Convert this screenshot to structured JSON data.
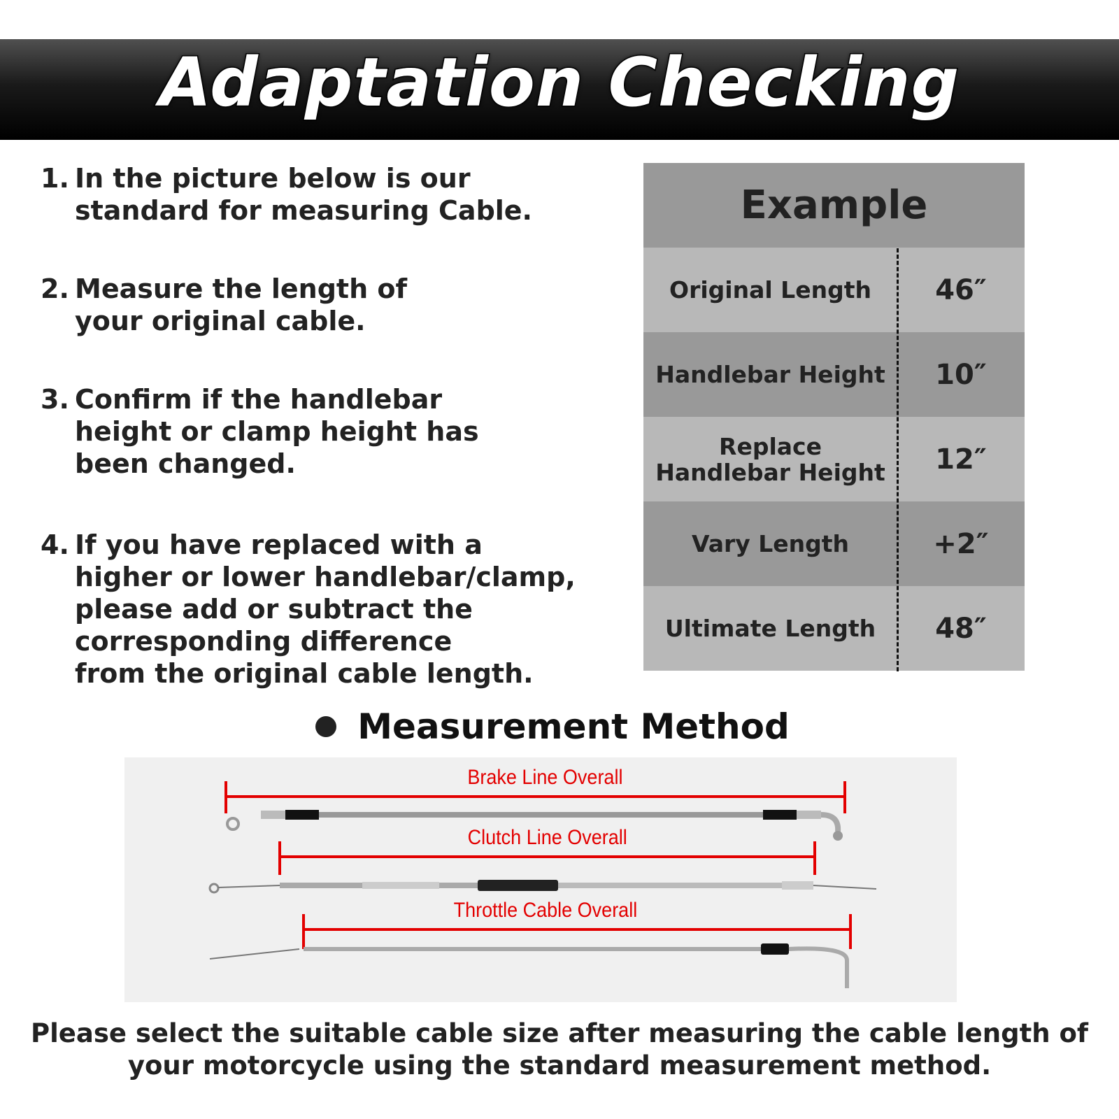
{
  "header": {
    "title": "Adaptation Checking"
  },
  "steps": [
    {
      "num": "1.",
      "text": "In the picture below is our\nstandard for measuring Cable."
    },
    {
      "num": "2.",
      "text": "Measure the length of\nyour original cable."
    },
    {
      "num": "3.",
      "text": "Confirm if the handlebar\nheight or clamp height has\nbeen changed."
    },
    {
      "num": "4.",
      "text": "If you have replaced with a\nhigher or lower handlebar/clamp,\nplease add or subtract the\ncorresponding difference\nfrom the original cable length."
    }
  ],
  "example": {
    "title": "Example",
    "rows": [
      {
        "label": "Original Length",
        "value": "46″"
      },
      {
        "label": "Handlebar Height",
        "value": "10″"
      },
      {
        "label": "Replace\nHandlebar Height",
        "value": "12″"
      },
      {
        "label": "Vary Length",
        "value": "+2″"
      },
      {
        "label": "Ultimate Length",
        "value": "48″"
      }
    ]
  },
  "measurement": {
    "heading": "Measurement Method",
    "labels": {
      "brake": "Brake Line Overall",
      "clutch": "Clutch Line Overall",
      "throttle": "Throttle Cable Overall"
    },
    "accent": "#e30000"
  },
  "footer": {
    "text": "Please select the suitable cable size after measuring the cable length of\nyour motorcycle using the standard measurement method."
  }
}
